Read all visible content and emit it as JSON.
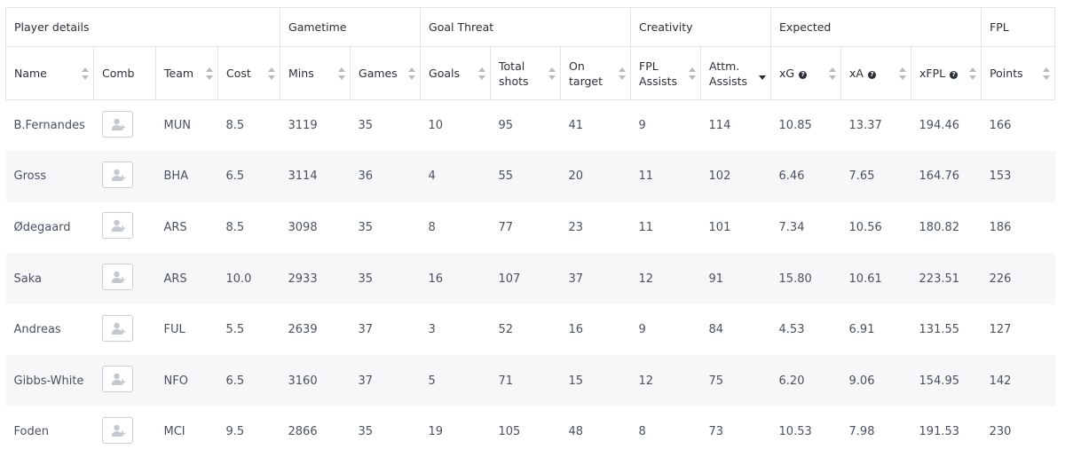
{
  "groups": [
    {
      "label": "Player details",
      "span": 4
    },
    {
      "label": "Gametime",
      "span": 2
    },
    {
      "label": "Goal Threat",
      "span": 3
    },
    {
      "label": "Creativity",
      "span": 2
    },
    {
      "label": "Expected",
      "span": 3
    },
    {
      "label": "FPL",
      "span": 1
    }
  ],
  "columns": [
    {
      "label": "Name",
      "sortable": true,
      "info": false,
      "sorted": false
    },
    {
      "label": "Comb",
      "sortable": false,
      "info": false,
      "sorted": false
    },
    {
      "label": "Team",
      "sortable": true,
      "info": false,
      "sorted": false
    },
    {
      "label": "Cost",
      "sortable": true,
      "info": false,
      "sorted": false
    },
    {
      "label": "Mins",
      "sortable": true,
      "info": false,
      "sorted": false
    },
    {
      "label": "Games",
      "sortable": true,
      "info": false,
      "sorted": false
    },
    {
      "label": "Goals",
      "sortable": true,
      "info": false,
      "sorted": false
    },
    {
      "label": "Total\nshots",
      "sortable": true,
      "info": false,
      "sorted": false
    },
    {
      "label": "On\ntarget",
      "sortable": true,
      "info": false,
      "sorted": false
    },
    {
      "label": "FPL\nAssists",
      "sortable": true,
      "info": false,
      "sorted": false
    },
    {
      "label": "Attm.\nAssists",
      "sortable": true,
      "info": false,
      "sorted": true
    },
    {
      "label": "xG",
      "sortable": true,
      "info": true,
      "sorted": false
    },
    {
      "label": "xA",
      "sortable": true,
      "info": true,
      "sorted": false
    },
    {
      "label": "xFPL",
      "sortable": true,
      "info": true,
      "sorted": false
    },
    {
      "label": "Points",
      "sortable": true,
      "info": false,
      "sorted": false
    }
  ],
  "rows": [
    {
      "name": "B.Fernandes",
      "team": "MUN",
      "cost": "8.5",
      "mins": "3119",
      "games": "35",
      "goals": "10",
      "shots": "95",
      "on_target": "41",
      "fpl_assists": "9",
      "attm_assists": "114",
      "xg": "10.85",
      "xa": "13.37",
      "xfpl": "194.46",
      "points": "166"
    },
    {
      "name": "Gross",
      "team": "BHA",
      "cost": "6.5",
      "mins": "3114",
      "games": "36",
      "goals": "4",
      "shots": "55",
      "on_target": "20",
      "fpl_assists": "11",
      "attm_assists": "102",
      "xg": "6.46",
      "xa": "7.65",
      "xfpl": "164.76",
      "points": "153"
    },
    {
      "name": "Ødegaard",
      "team": "ARS",
      "cost": "8.5",
      "mins": "3098",
      "games": "35",
      "goals": "8",
      "shots": "77",
      "on_target": "23",
      "fpl_assists": "11",
      "attm_assists": "101",
      "xg": "7.34",
      "xa": "10.56",
      "xfpl": "180.82",
      "points": "186"
    },
    {
      "name": "Saka",
      "team": "ARS",
      "cost": "10.0",
      "mins": "2933",
      "games": "35",
      "goals": "16",
      "shots": "107",
      "on_target": "37",
      "fpl_assists": "12",
      "attm_assists": "91",
      "xg": "15.80",
      "xa": "10.61",
      "xfpl": "223.51",
      "points": "226"
    },
    {
      "name": "Andreas",
      "team": "FUL",
      "cost": "5.5",
      "mins": "2639",
      "games": "37",
      "goals": "3",
      "shots": "52",
      "on_target": "16",
      "fpl_assists": "9",
      "attm_assists": "84",
      "xg": "4.53",
      "xa": "6.91",
      "xfpl": "131.55",
      "points": "127"
    },
    {
      "name": "Gibbs-White",
      "team": "NFO",
      "cost": "6.5",
      "mins": "3160",
      "games": "37",
      "goals": "5",
      "shots": "71",
      "on_target": "15",
      "fpl_assists": "12",
      "attm_assists": "75",
      "xg": "6.20",
      "xa": "9.06",
      "xfpl": "154.95",
      "points": "142"
    },
    {
      "name": "Foden",
      "team": "MCI",
      "cost": "9.5",
      "mins": "2866",
      "games": "35",
      "goals": "19",
      "shots": "105",
      "on_target": "48",
      "fpl_assists": "8",
      "attm_assists": "73",
      "xg": "10.53",
      "xa": "7.98",
      "xfpl": "191.53",
      "points": "230"
    }
  ],
  "icons": {
    "sort": "sort-arrows-icon",
    "info": "question-circle-icon",
    "comb": "add-user-icon"
  },
  "colors": {
    "border": "#e2e4e8",
    "stripe": "#f7f7f9",
    "text": "#4a5160",
    "header_text": "#2b2f36"
  }
}
